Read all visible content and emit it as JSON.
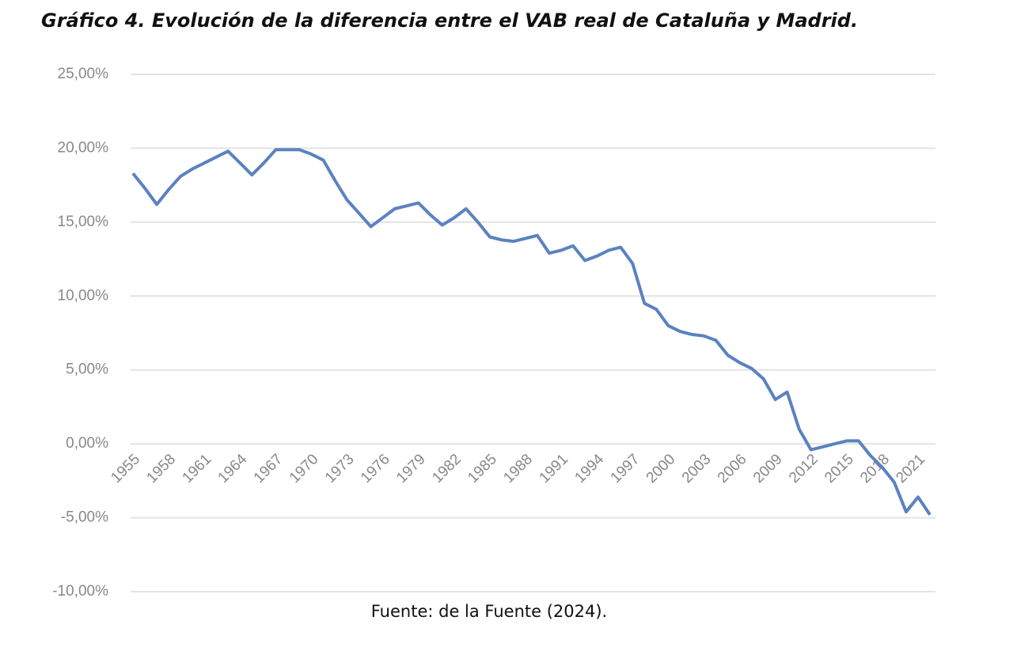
{
  "chart_data": {
    "type": "line",
    "title": "Gráfico 4. Evolución de la diferencia entre el VAB real de Cataluña y Madrid.",
    "note": "Fuente: de la Fuente (2024).",
    "categories": [
      "1955",
      null,
      null,
      "1958",
      null,
      null,
      "1961",
      null,
      null,
      "1964",
      null,
      null,
      "1967",
      null,
      null,
      "1970",
      null,
      null,
      "1973",
      null,
      null,
      "1976",
      null,
      null,
      "1979",
      null,
      null,
      "1982",
      null,
      null,
      "1985",
      null,
      null,
      "1988",
      null,
      null,
      "1991",
      null,
      null,
      "1994",
      null,
      null,
      "1997",
      null,
      null,
      "2000",
      null,
      null,
      "2003",
      null,
      null,
      "2006",
      null,
      null,
      "2009",
      null,
      null,
      "2012",
      null,
      null,
      "2015",
      null,
      null,
      "2018",
      null,
      null,
      "2021",
      null
    ],
    "values": [
      18.3,
      17.3,
      16.2,
      17.2,
      18.1,
      18.6,
      19.0,
      19.4,
      19.8,
      19.0,
      18.2,
      19.0,
      19.9,
      19.9,
      19.9,
      19.6,
      19.2,
      17.8,
      16.5,
      15.6,
      14.7,
      15.3,
      15.9,
      16.1,
      16.3,
      15.5,
      14.8,
      15.3,
      15.9,
      15.0,
      14.0,
      13.8,
      13.7,
      13.9,
      14.1,
      12.9,
      13.1,
      13.4,
      12.4,
      12.7,
      13.1,
      13.3,
      12.2,
      9.5,
      9.1,
      8.0,
      7.6,
      7.4,
      7.3,
      7.0,
      6.0,
      5.5,
      5.1,
      4.4,
      3.0,
      3.5,
      1.0,
      -0.4,
      -0.2,
      0.0,
      0.2,
      0.2,
      -0.8,
      -1.6,
      -2.6,
      -4.6,
      -3.6,
      -4.8
    ],
    "color": "#5b82c0",
    "ylim": [
      -10,
      25
    ],
    "yticks": [
      {
        "value": -10,
        "label": "-10,00%"
      },
      {
        "value": -5,
        "label": "-5,00%"
      },
      {
        "value": 0,
        "label": "0,00%"
      },
      {
        "value": 5,
        "label": "5,00%"
      },
      {
        "value": 10,
        "label": "10,00%"
      },
      {
        "value": 15,
        "label": "15,00%"
      },
      {
        "value": 20,
        "label": "20,00%"
      },
      {
        "value": 25,
        "label": "25,00%"
      }
    ],
    "grid": true
  }
}
